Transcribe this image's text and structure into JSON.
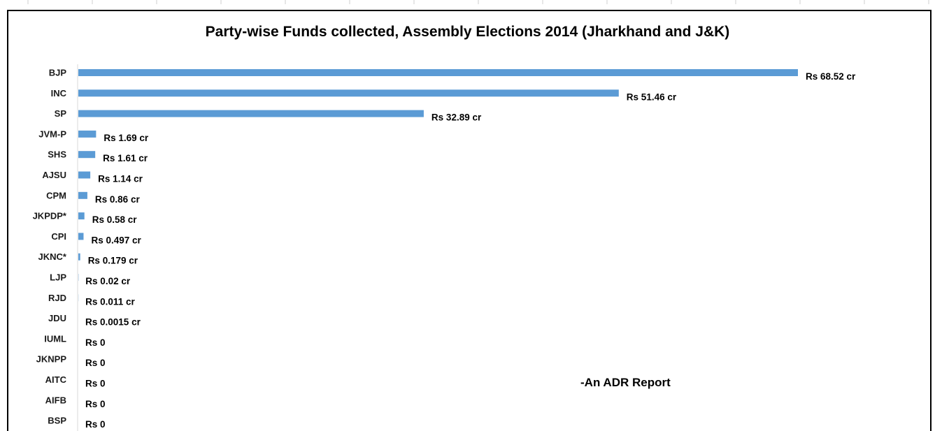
{
  "chart_data": {
    "type": "bar",
    "orientation": "horizontal",
    "title": "Party-wise Funds collected, Assembly Elections 2014 (Jharkhand and J&K)",
    "xlabel": "",
    "ylabel": "",
    "unit": "Rs crore",
    "xlim": [
      0,
      68.52
    ],
    "grid": false,
    "legend": "none",
    "bar_color": "#5b9bd5",
    "categories": [
      "BJP",
      "INC",
      "SP",
      "JVM-P",
      "SHS",
      "AJSU",
      "CPM",
      "JKPDP*",
      "CPI",
      "JKNC*",
      "LJP",
      "RJD",
      "JDU",
      "IUML",
      "JKNPP",
      "AITC",
      "AIFB",
      "BSP"
    ],
    "values": [
      68.52,
      51.46,
      32.89,
      1.69,
      1.61,
      1.14,
      0.86,
      0.58,
      0.497,
      0.179,
      0.02,
      0.011,
      0.0015,
      0,
      0,
      0,
      0,
      0
    ],
    "data_labels": [
      "Rs 68.52 cr",
      "Rs 51.46 cr",
      "Rs 32.89 cr",
      "Rs 1.69 cr",
      "Rs 1.61 cr",
      "Rs 1.14 cr",
      "Rs 0.86 cr",
      "Rs 0.58 cr",
      "Rs 0.497 cr",
      "Rs 0.179 cr",
      "Rs 0.02 cr",
      "Rs 0.011 cr",
      "Rs 0.0015 cr",
      "Rs 0",
      "Rs 0",
      "Rs 0",
      "Rs 0",
      "Rs 0"
    ],
    "annotations": [
      "-An ADR Report"
    ]
  }
}
